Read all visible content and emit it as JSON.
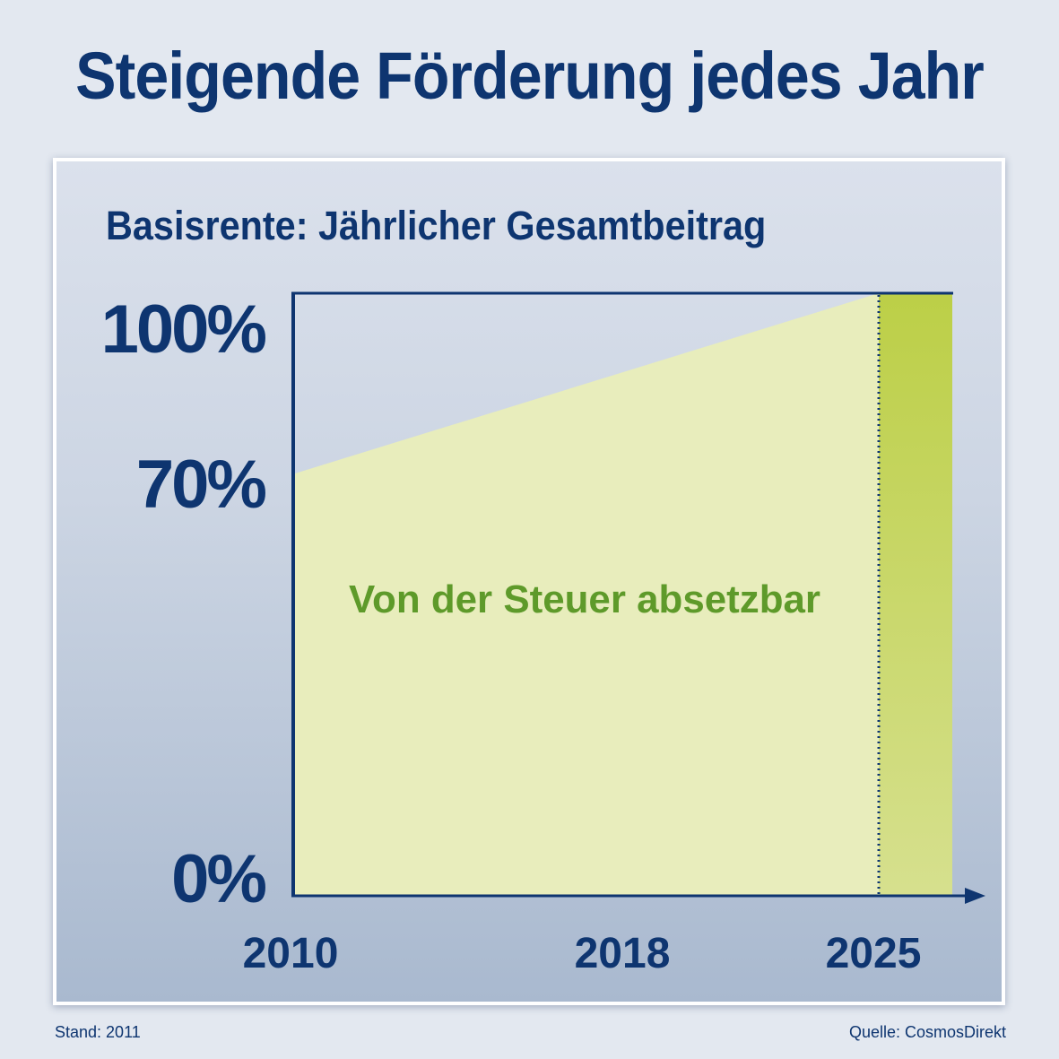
{
  "headline": "Steigende Förderung jedes Jahr",
  "footer": {
    "stand": "Stand: 2011",
    "source": "Quelle: CosmosDirekt"
  },
  "colors": {
    "navy": "#0e3570",
    "area_fill": "#e8edbc",
    "area_highlight": "#c4d45a",
    "annotation_green": "#5e9a2a"
  },
  "chart_data": {
    "type": "area",
    "title": "Basisrente: Jährlicher Gesamtbeitrag",
    "x": [
      2010,
      2025
    ],
    "series": [
      {
        "name": "Von der Steuer absetzbar",
        "values": [
          70,
          100
        ]
      }
    ],
    "xlim": [
      2010,
      2026
    ],
    "ylim": [
      0,
      100
    ],
    "x_ticks": [
      "2010",
      "2018",
      "2025"
    ],
    "y_ticks": [
      "0%",
      "70%",
      "100%"
    ],
    "annotation": "Von der Steuer absetzbar",
    "highlight_from": 2025,
    "grid": false
  }
}
